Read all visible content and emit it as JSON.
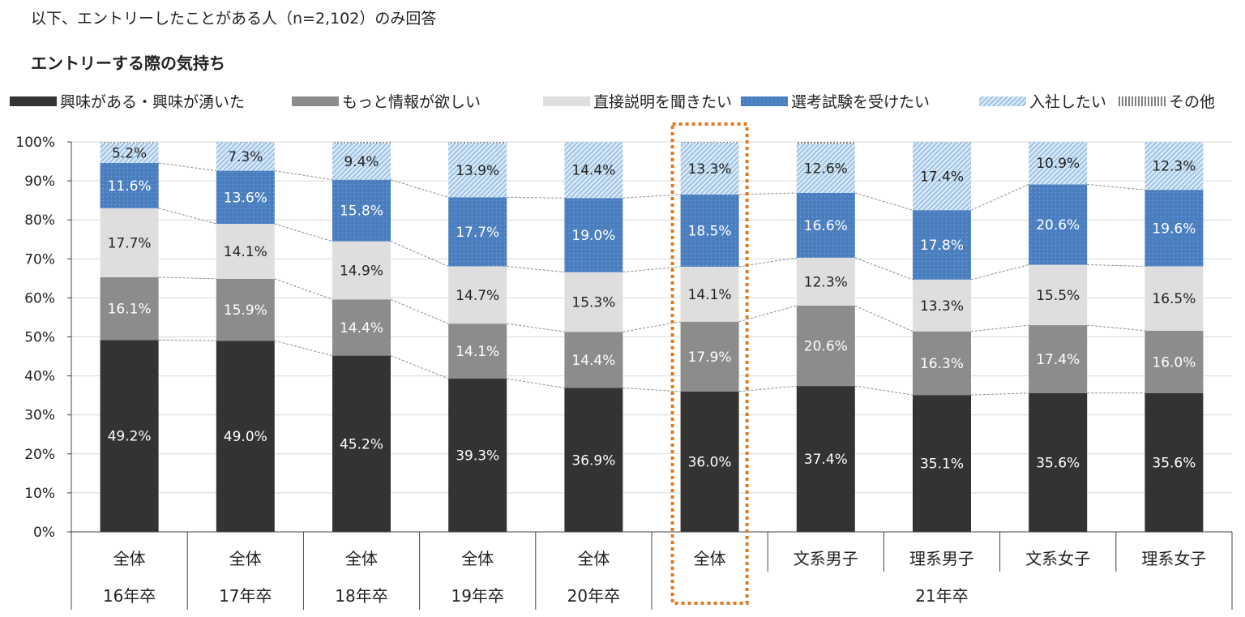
{
  "header": {
    "note": "以下、エントリーしたことがある人（n=2,102）のみ回答",
    "subtitle": "エントリーする際の気持ち"
  },
  "chart_data": {
    "type": "bar",
    "stacked": true,
    "title": "エントリーする際の気持ち",
    "ylim": [
      0,
      100
    ],
    "yticks": [
      "0%",
      "10%",
      "20%",
      "30%",
      "40%",
      "50%",
      "60%",
      "70%",
      "80%",
      "90%",
      "100%"
    ],
    "categories": [
      "全体",
      "全体",
      "全体",
      "全体",
      "全体",
      "全体",
      "文系男子",
      "理系男子",
      "文系女子",
      "理系女子"
    ],
    "group_labels": [
      {
        "label": "16年卒",
        "from": 0,
        "to": 0
      },
      {
        "label": "17年卒",
        "from": 1,
        "to": 1
      },
      {
        "label": "18年卒",
        "from": 2,
        "to": 2
      },
      {
        "label": "19年卒",
        "from": 3,
        "to": 3
      },
      {
        "label": "20年卒",
        "from": 4,
        "to": 4
      },
      {
        "label": "21年卒",
        "from": 5,
        "to": 9
      }
    ],
    "highlight_index": 5,
    "series": [
      {
        "name": "興味がある・興味が湧いた",
        "color": "#333333",
        "pattern": "solid",
        "values": [
          49.2,
          49.0,
          45.2,
          39.3,
          36.9,
          36.0,
          37.4,
          35.1,
          35.6,
          35.6
        ]
      },
      {
        "name": "もっと情報が欲しい",
        "color": "#8c8c8c",
        "pattern": "solid",
        "values": [
          16.1,
          15.9,
          14.4,
          14.1,
          14.4,
          17.9,
          20.6,
          16.3,
          17.4,
          16.0
        ]
      },
      {
        "name": "直接説明を聞きたい",
        "color": "#dedede",
        "pattern": "solid",
        "values": [
          17.7,
          14.1,
          14.9,
          14.7,
          15.3,
          14.1,
          12.3,
          13.3,
          15.5,
          16.5
        ]
      },
      {
        "name": "選考試験を受けたい",
        "color": "#4a7ebf",
        "pattern": "dots",
        "values": [
          11.6,
          13.6,
          15.8,
          17.7,
          19.0,
          18.5,
          16.6,
          17.8,
          20.6,
          19.6
        ]
      },
      {
        "name": "入社したい",
        "color": "#bdd7ee",
        "pattern": "diagonal",
        "values": [
          5.2,
          7.3,
          9.4,
          13.9,
          14.4,
          13.3,
          12.6,
          17.4,
          10.9,
          12.3
        ]
      },
      {
        "name": "その他",
        "color": "#7f7f7f",
        "pattern": "vertical",
        "values": [
          0.2,
          0.7,
          0.3,
          0.3,
          0.0,
          0.2,
          0.5,
          0.1,
          0.0,
          0.0
        ]
      }
    ],
    "label_colors": [
      "#ffffff",
      "#ffffff",
      "#222222",
      "#ffffff",
      "#222222",
      null
    ]
  }
}
